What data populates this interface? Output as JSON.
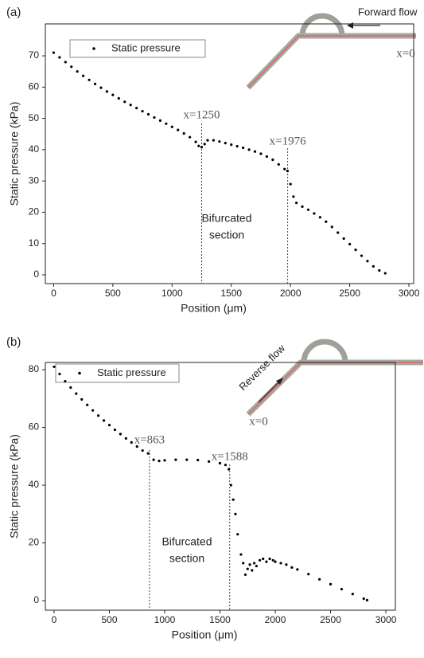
{
  "chart_data": [
    {
      "type": "scatter",
      "panel_label": "(a)",
      "xlabel": "Position (μm)",
      "ylabel": "Static pressure (kPa)",
      "xlim": [
        -70,
        3040
      ],
      "ylim": [
        -2.8,
        80.2
      ],
      "xticks": [
        0,
        500,
        1000,
        1500,
        2000,
        2500,
        3000
      ],
      "yticks": [
        0,
        10,
        20,
        30,
        40,
        50,
        60,
        70
      ],
      "x": [
        0,
        50,
        100,
        150,
        200,
        250,
        300,
        350,
        400,
        450,
        500,
        550,
        600,
        650,
        700,
        750,
        800,
        850,
        900,
        950,
        1000,
        1050,
        1100,
        1150,
        1200,
        1225,
        1250,
        1275,
        1300,
        1350,
        1400,
        1450,
        1500,
        1550,
        1600,
        1650,
        1700,
        1750,
        1800,
        1850,
        1900,
        1950,
        1975,
        2000,
        2025,
        2050,
        2100,
        2150,
        2200,
        2250,
        2300,
        2350,
        2400,
        2450,
        2500,
        2550,
        2600,
        2650,
        2700,
        2750,
        2800
      ],
      "series": [
        {
          "name": "Static pressure",
          "color": "#000000",
          "values": [
            71,
            69.5,
            68,
            66.5,
            65,
            63.6,
            62.3,
            61,
            59.8,
            58.6,
            57.5,
            56.4,
            55.3,
            54.3,
            53.3,
            52.3,
            51.3,
            50.3,
            49.3,
            48.3,
            47.3,
            46.3,
            45.2,
            44.0,
            42.5,
            41.2,
            40.8,
            41.8,
            43.0,
            43.0,
            42.6,
            42.1,
            41.6,
            41.1,
            40.6,
            40.0,
            39.4,
            38.7,
            37.8,
            36.8,
            35.3,
            33.8,
            33.2,
            29,
            25,
            23,
            21.8,
            20.8,
            19.6,
            18.4,
            17.0,
            15.3,
            13.5,
            11.6,
            9.8,
            8.0,
            6.1,
            4.4,
            2.7,
            1.4,
            0.5
          ]
        }
      ],
      "vlines": [
        {
          "value": 1250,
          "label": "x=1250"
        },
        {
          "value": 1976,
          "label": "x=1976"
        }
      ],
      "region_label": [
        "Bifurcated",
        "section"
      ],
      "diagram": {
        "flow_label": "Forward flow",
        "origin_label": "x=0"
      }
    },
    {
      "type": "scatter",
      "panel_label": "(b)",
      "xlabel": "Position (μm)",
      "ylabel": "Static pressure (kPa)",
      "xlim": [
        -79,
        3086
      ],
      "ylim": [
        -3.3,
        82.5
      ],
      "xticks": [
        0,
        500,
        1000,
        1500,
        2000,
        2500,
        3000
      ],
      "yticks": [
        0,
        20,
        40,
        60,
        80
      ],
      "x": [
        0,
        50,
        100,
        150,
        200,
        250,
        300,
        350,
        400,
        450,
        500,
        550,
        600,
        650,
        700,
        750,
        800,
        850,
        900,
        950,
        1000,
        1100,
        1200,
        1300,
        1400,
        1500,
        1550,
        1580,
        1600,
        1620,
        1640,
        1660,
        1690,
        1710,
        1730,
        1750,
        1770,
        1790,
        1810,
        1830,
        1860,
        1890,
        1920,
        1950,
        1980,
        2000,
        2050,
        2100,
        2150,
        2200,
        2300,
        2400,
        2500,
        2600,
        2700,
        2800,
        2830
      ],
      "series": [
        {
          "name": "Static pressure",
          "color": "#000000",
          "values": [
            81,
            78.5,
            76,
            73.8,
            71.7,
            69.7,
            67.8,
            65.9,
            64.1,
            62.4,
            60.8,
            59.2,
            57.7,
            56.2,
            54.8,
            53.4,
            52.0,
            51.0,
            48.8,
            48.4,
            48.6,
            48.8,
            48.8,
            48.7,
            48.2,
            47.6,
            47.0,
            45.5,
            40,
            35,
            30,
            23,
            16,
            13,
            9,
            11,
            12.5,
            10.5,
            13,
            12,
            14,
            14.5,
            13.5,
            14.5,
            14,
            13.5,
            13,
            12.5,
            11.5,
            10.8,
            9.2,
            7.4,
            5.7,
            4,
            2.3,
            0.7,
            0.2
          ]
        }
      ],
      "vlines": [
        {
          "value": 863,
          "label": "x=863"
        },
        {
          "value": 1588,
          "label": "x=1588"
        }
      ],
      "region_label": [
        "Bifurcated",
        "section"
      ],
      "diagram": {
        "flow_label": "Reverse flow",
        "origin_label": "x=0"
      }
    }
  ]
}
